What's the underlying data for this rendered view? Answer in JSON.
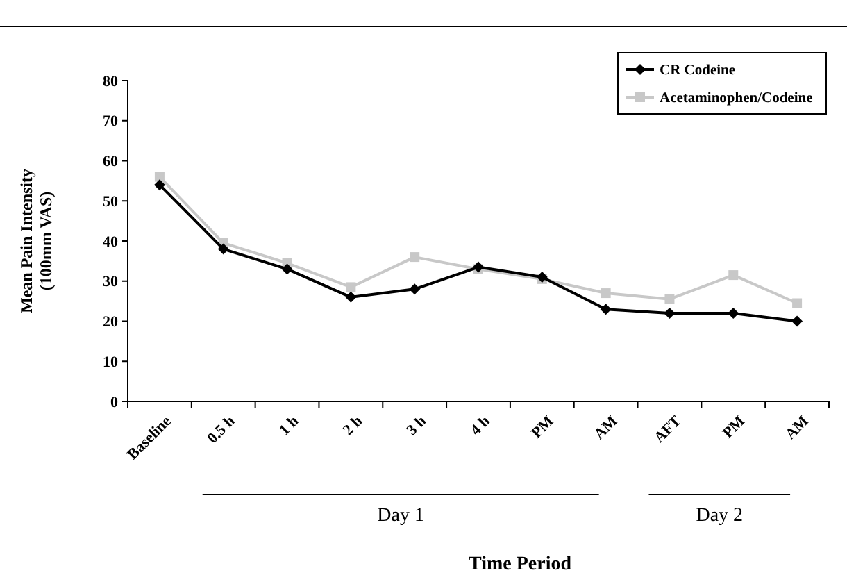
{
  "chart_data": {
    "type": "line",
    "xlabel": "Time Period",
    "ylabel": "Mean Pain Intensity\n(100mm VAS)",
    "categories": [
      "Baseline",
      "0.5 h",
      "1 h",
      "2 h",
      "3 h",
      "4 h",
      "PM",
      "AM",
      "AFT",
      "PM",
      "AM"
    ],
    "series": [
      {
        "name": "CR Codeine",
        "color": "#000000",
        "marker": "diamond",
        "values": [
          54,
          38,
          33,
          26,
          28,
          33.5,
          31,
          23,
          22,
          22,
          20
        ]
      },
      {
        "name": "Acetaminophen/Codeine",
        "color": "#c8c8c8",
        "marker": "square",
        "values": [
          56,
          39.5,
          34.5,
          28.5,
          36,
          33,
          30.5,
          27,
          25.5,
          31.5,
          24.5
        ]
      }
    ],
    "ylim": [
      0,
      80
    ],
    "yticks": [
      0,
      10,
      20,
      30,
      40,
      50,
      60,
      70,
      80
    ],
    "grid": false,
    "legend": "top right",
    "line_style": "solid",
    "annotations": [
      "Day 1",
      "Day 2"
    ]
  }
}
